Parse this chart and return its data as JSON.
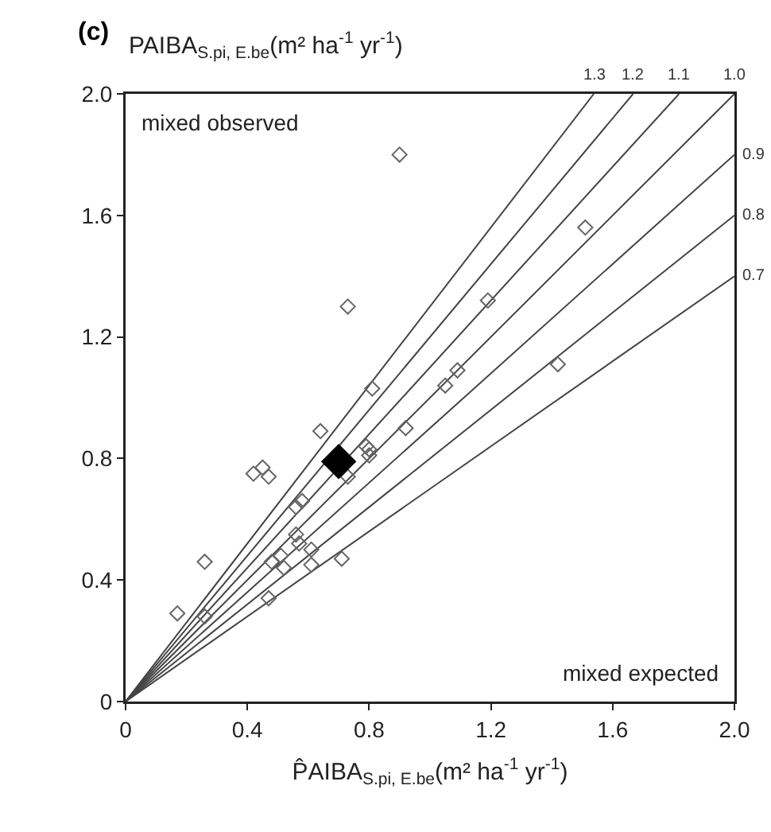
{
  "chart_data": {
    "type": "scatter",
    "title": "(c)",
    "xlabel": "P̂AIBA$_{S.pi, E.be}$(m² ha$^{-1}$ yr$^{-1}$)",
    "ylabel": "PAIBA$_{S.pi, E.be}$(m² ha$^{-1}$ yr$^{-1}$)",
    "annotations": [
      "mixed observed",
      "mixed expected"
    ],
    "xlim": [
      0,
      2
    ],
    "ylim": [
      0,
      2
    ],
    "xticks": [
      0,
      0.4,
      0.8,
      1.2,
      1.6,
      {
        "value": 2,
        "label": "2.0"
      }
    ],
    "yticks": [
      0,
      0.4,
      0.8,
      1.2,
      1.6,
      {
        "value": 2,
        "label": "2.0"
      }
    ],
    "grid": false,
    "legend": false,
    "marker": "diamond",
    "series": [
      {
        "name": "1.3",
        "type": "line",
        "marker": "none",
        "color": "#444444",
        "x": [
          0,
          1.538
        ],
        "values": [
          0,
          2
        ]
      },
      {
        "name": "1.2",
        "type": "line",
        "marker": "none",
        "color": "#444444",
        "x": [
          0,
          1.667
        ],
        "values": [
          0,
          2
        ]
      },
      {
        "name": "1.1",
        "type": "line",
        "marker": "none",
        "color": "#444444",
        "x": [
          0,
          1.818
        ],
        "values": [
          0,
          2
        ]
      },
      {
        "name": "1.0",
        "type": "line",
        "marker": "none",
        "color": "#444444",
        "x": [
          0,
          2
        ],
        "values": [
          0,
          2
        ]
      },
      {
        "name": "0.9",
        "type": "line",
        "marker": "none",
        "color": "#444444",
        "x": [
          0,
          2
        ],
        "values": [
          0,
          1.8
        ]
      },
      {
        "name": "0.8",
        "type": "line",
        "marker": "none",
        "color": "#444444",
        "x": [
          0,
          2
        ],
        "values": [
          0,
          1.6
        ]
      },
      {
        "name": "0.7",
        "type": "line",
        "marker": "none",
        "color": "#444444",
        "x": [
          0,
          2
        ],
        "values": [
          0,
          1.4
        ]
      },
      {
        "color": "#666666",
        "x": [
          0.9,
          0.73,
          1.51,
          1.19,
          1.42,
          1.09,
          1.05,
          0.92,
          0.81,
          0.8,
          0.8,
          0.64,
          0.79,
          0.73,
          0.42,
          0.45,
          0.47,
          0.56,
          0.58,
          0.56,
          0.57,
          0.61,
          0.48,
          0.51,
          0.52,
          0.61,
          0.71,
          0.47,
          0.26,
          0.17,
          0.26
        ],
        "values": [
          1.8,
          1.3,
          1.56,
          1.32,
          1.11,
          1.09,
          1.04,
          0.9,
          1.03,
          0.81,
          0.83,
          0.89,
          0.84,
          0.74,
          0.75,
          0.77,
          0.74,
          0.64,
          0.66,
          0.55,
          0.52,
          0.5,
          0.46,
          0.48,
          0.44,
          0.45,
          0.47,
          0.34,
          0.46,
          0.29,
          0.28
        ]
      },
      {
        "color": "#000000",
        "marker": "diamond-filled",
        "x": [
          0.7
        ],
        "values": [
          0.79
        ]
      }
    ]
  }
}
